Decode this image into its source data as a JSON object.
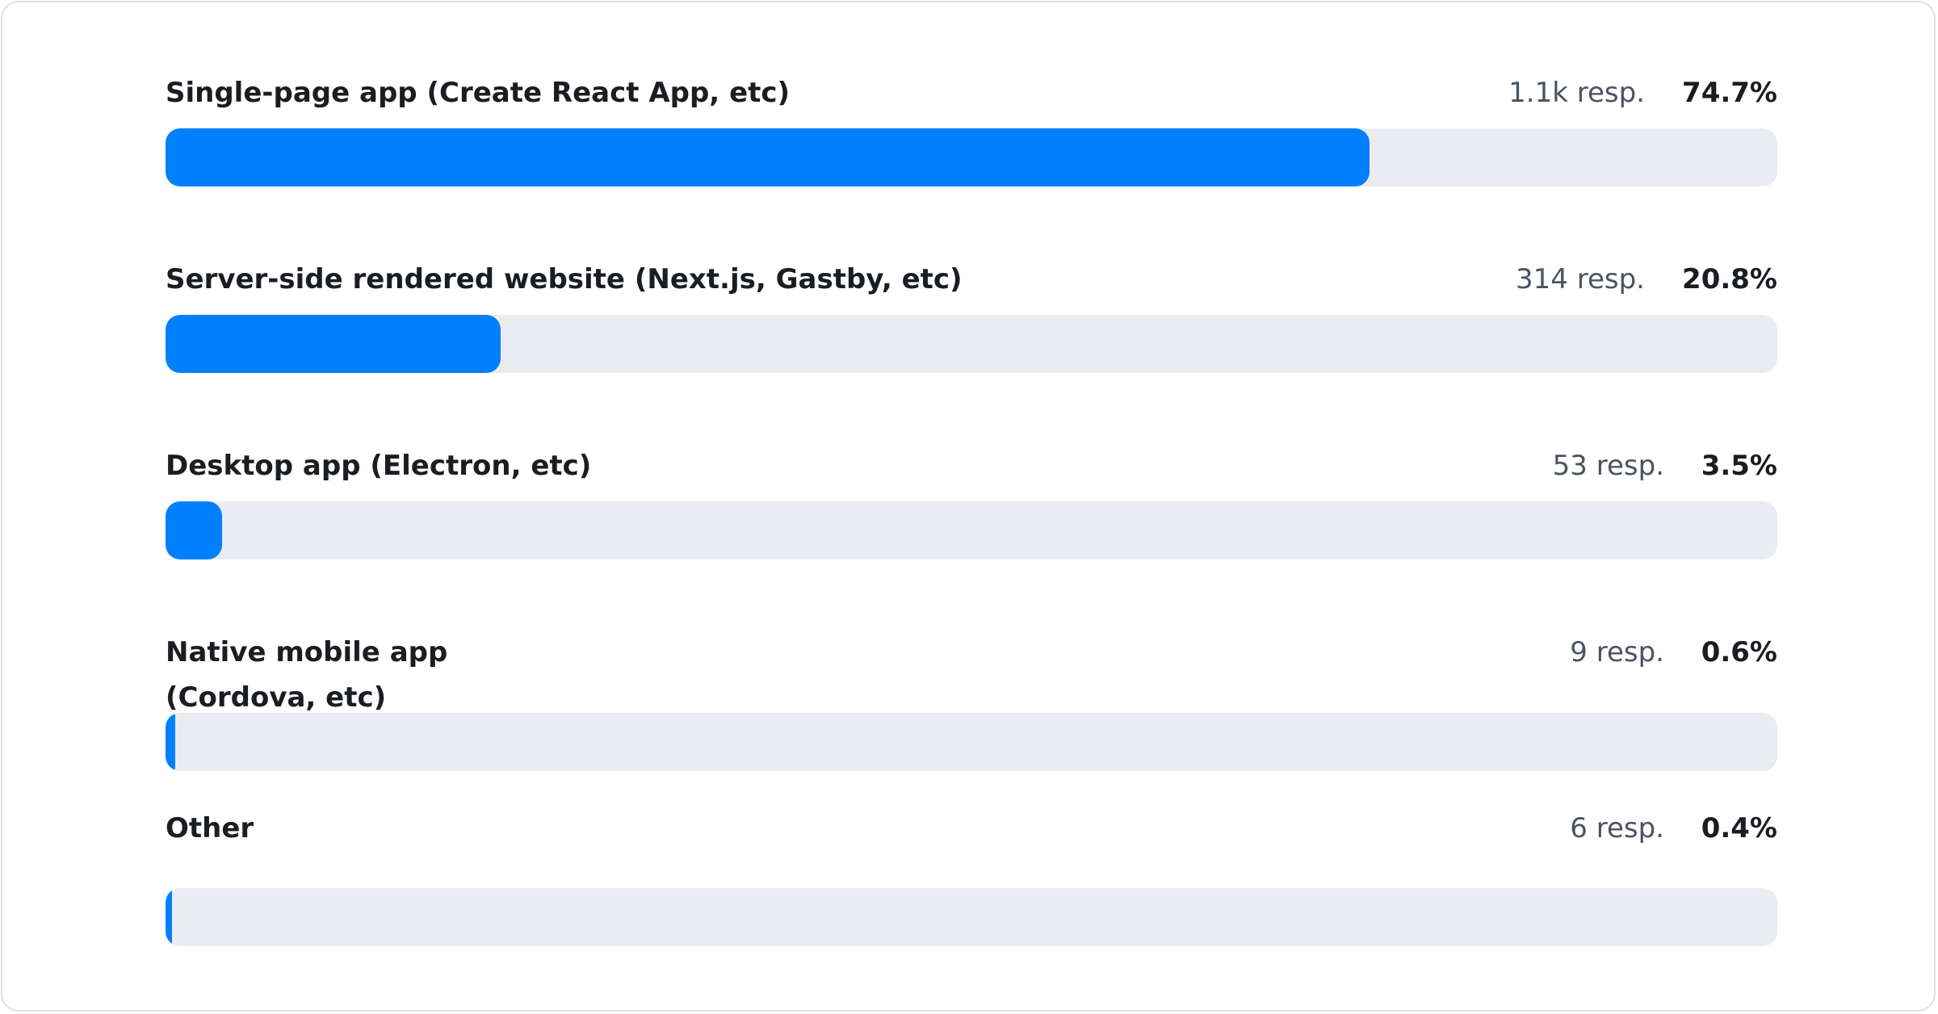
{
  "chart_data": {
    "type": "bar",
    "orientation": "horizontal",
    "categories": [
      "Single-page app (Create React App, etc)",
      "Server-side rendered website (Next.js, Gastby, etc)",
      "Desktop app (Electron, etc)",
      "Native mobile app (Cordova, etc)",
      "Other"
    ],
    "responses": [
      "1.1k resp.",
      "314 resp.",
      "53 resp.",
      "9 resp.",
      "6 resp."
    ],
    "percent_labels": [
      "74.7%",
      "20.8%",
      "3.5%",
      "0.6%",
      "0.4%"
    ],
    "values": [
      74.7,
      20.8,
      3.5,
      0.6,
      0.4
    ],
    "xlim": [
      0,
      100
    ],
    "colors": {
      "fill": "#0080ff",
      "track": "#e9ecf1"
    }
  }
}
